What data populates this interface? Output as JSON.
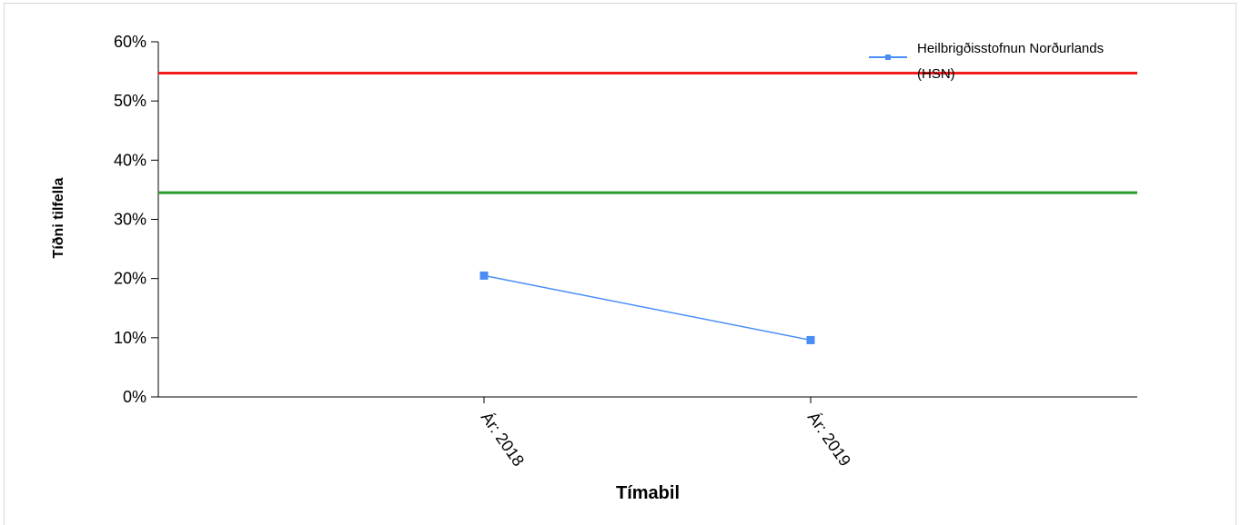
{
  "chart_data": {
    "type": "line",
    "title": "",
    "xlabel": "Tímabil",
    "ylabel": "Tíðni tilfella",
    "categories": [
      "Ár: 2018",
      "Ár: 2019"
    ],
    "y_ticks": [
      "0%",
      "10%",
      "20%",
      "30%",
      "40%",
      "50%",
      "60%"
    ],
    "ylim": [
      0,
      60
    ],
    "grid": false,
    "legend_position": "top-right",
    "legend_lines": [
      "Heilbrigðisstofnun Norðurlands",
      "(HSN)"
    ],
    "series": [
      {
        "name": "Heilbrigðisstofnun Norðurlands (HSN)",
        "values": [
          20.5,
          9.6
        ],
        "color": "#4a8ef5"
      }
    ],
    "reference_lines": [
      {
        "value": 54.7,
        "color": "#f21c1c"
      },
      {
        "value": 34.5,
        "color": "#2b9a2b"
      }
    ]
  }
}
